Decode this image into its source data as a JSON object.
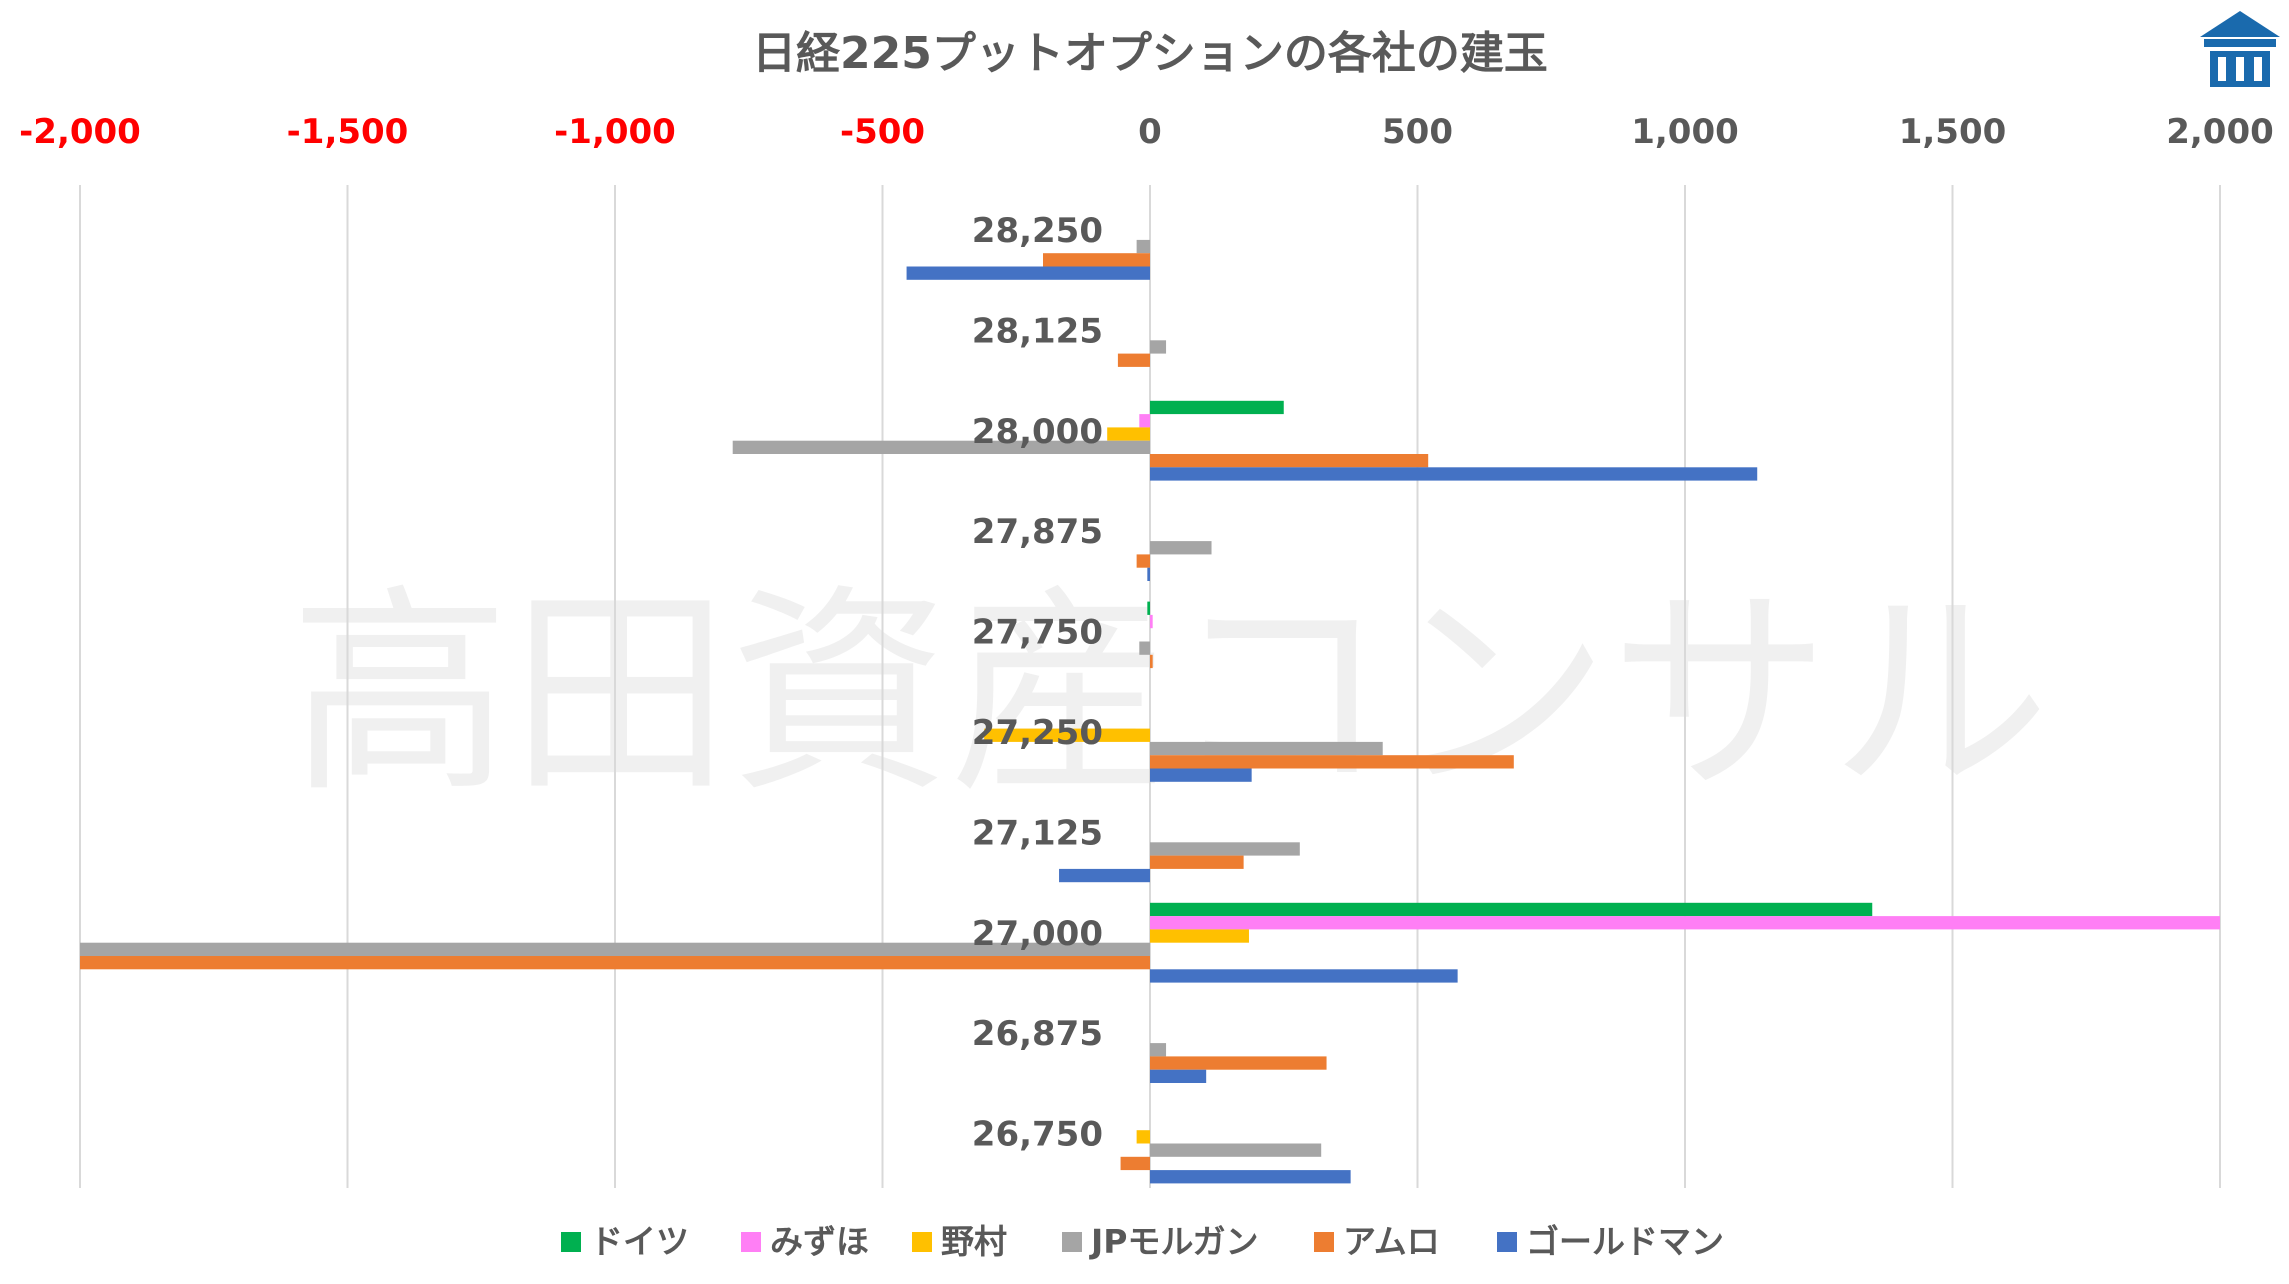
{
  "chart_data": {
    "type": "bar",
    "orientation": "horizontal",
    "title": "日経225プットオプションの各社の建玉",
    "xlim": [
      -2000,
      2000
    ],
    "x_ticks": [
      {
        "value": -2000,
        "label": "-2,000"
      },
      {
        "value": -1500,
        "label": "-1,500"
      },
      {
        "value": -1000,
        "label": "-1,000"
      },
      {
        "value": -500,
        "label": "-500"
      },
      {
        "value": 0,
        "label": "0"
      },
      {
        "value": 500,
        "label": "500"
      },
      {
        "value": 1000,
        "label": "1,000"
      },
      {
        "value": 1500,
        "label": "1,500"
      },
      {
        "value": 2000,
        "label": "2,000"
      }
    ],
    "negative_tick_color": "#ff0000",
    "positive_tick_color": "#595959",
    "grid": true,
    "legend_position": "bottom",
    "categories": [
      "28,250",
      "28,125",
      "28,000",
      "27,875",
      "27,750",
      "27,250",
      "27,125",
      "27,000",
      "26,875",
      "26,750"
    ],
    "series": [
      {
        "name": "ドイツ",
        "color": "#00b050",
        "values": [
          0,
          0,
          250,
          0,
          -5,
          0,
          0,
          1350,
          0,
          0
        ]
      },
      {
        "name": "みずほ",
        "color": "#ff7ff5",
        "values": [
          0,
          0,
          -20,
          0,
          5,
          0,
          0,
          2000,
          0,
          0
        ]
      },
      {
        "name": "野村",
        "color": "#ffc000",
        "values": [
          0,
          0,
          -80,
          0,
          0,
          -310,
          0,
          185,
          0,
          -25
        ]
      },
      {
        "name": "JPモルガン",
        "color": "#a5a5a5",
        "values": [
          -25,
          30,
          -780,
          115,
          -20,
          435,
          280,
          -2000,
          30,
          320
        ]
      },
      {
        "name": "アムロ",
        "color": "#ed7d31",
        "values": [
          -200,
          -60,
          520,
          -25,
          5,
          680,
          175,
          -2000,
          330,
          -55
        ]
      },
      {
        "name": "ゴールドマン",
        "color": "#4472c4",
        "values": [
          -455,
          0,
          1135,
          -5,
          0,
          190,
          -170,
          575,
          105,
          375
        ]
      }
    ]
  },
  "watermark": "高田資産コンサル",
  "logo": {
    "name": "logo-icon",
    "color": "#1a6aad"
  }
}
